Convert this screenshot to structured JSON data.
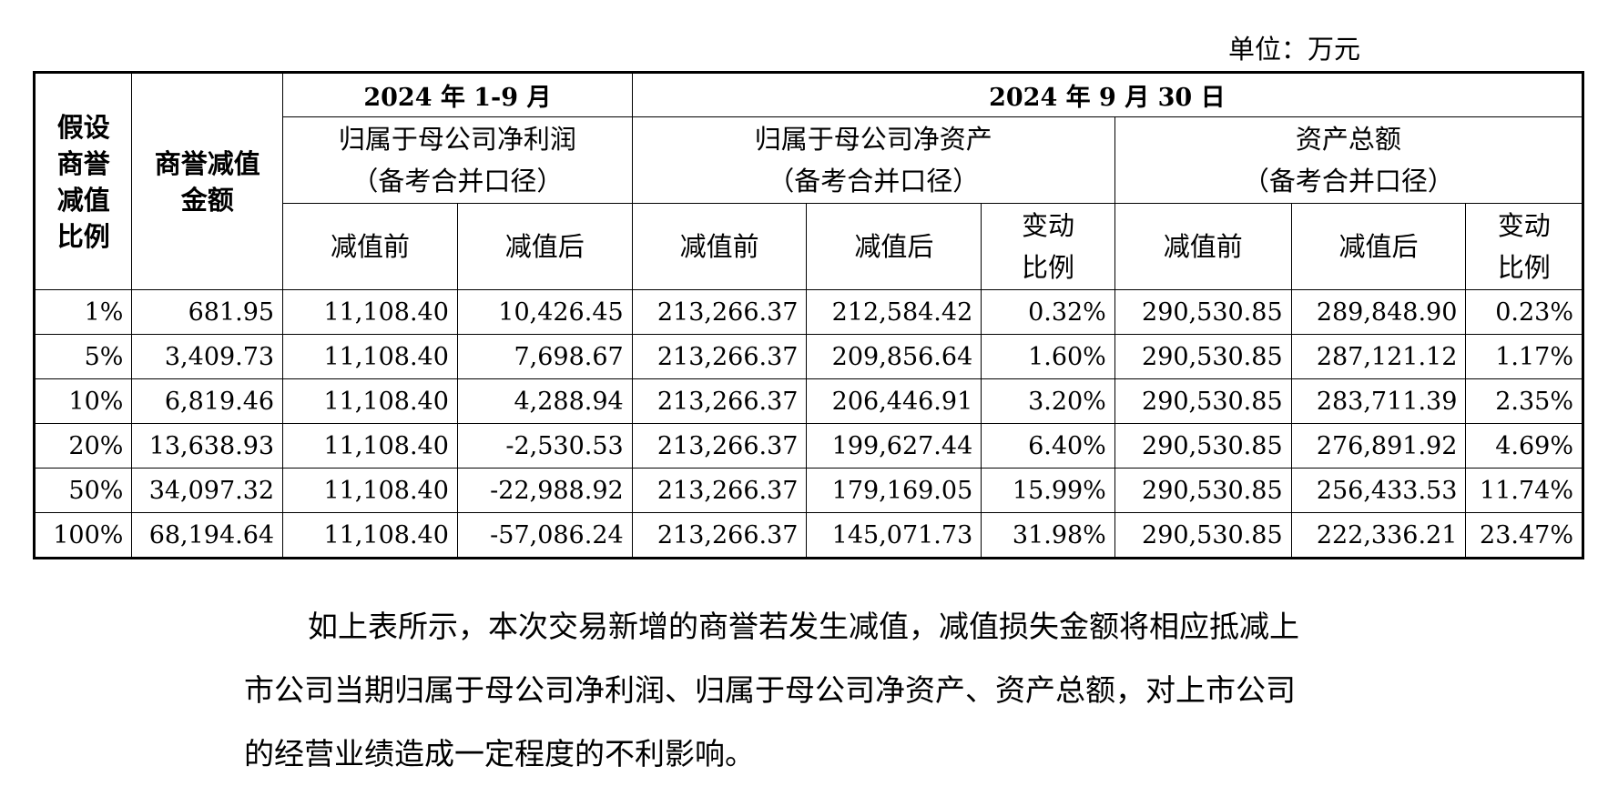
{
  "unit_label": "单位：万元",
  "table": {
    "col_ratio_lines": [
      "假设",
      "商誉",
      "减值",
      "比例"
    ],
    "col_amount_lines": [
      "商誉减值",
      "金额"
    ],
    "period1": "2024 年 1-9 月",
    "period2": "2024 年 9 月 30 日",
    "group_profit_lines": [
      "归属于母公司净利润",
      "（备考合并口径）"
    ],
    "group_equity_lines": [
      "归属于母公司净资产",
      "（备考合并口径）"
    ],
    "group_assets_lines": [
      "资产总额",
      "（备考合并口径）"
    ],
    "sub_before": "减值前",
    "sub_after": "减值后",
    "sub_change_lines": [
      "变动",
      "比例"
    ],
    "rows": [
      [
        "1%",
        "681.95",
        "11,108.40",
        "10,426.45",
        "213,266.37",
        "212,584.42",
        "0.32%",
        "290,530.85",
        "289,848.90",
        "0.23%"
      ],
      [
        "5%",
        "3,409.73",
        "11,108.40",
        "7,698.67",
        "213,266.37",
        "209,856.64",
        "1.60%",
        "290,530.85",
        "287,121.12",
        "1.17%"
      ],
      [
        "10%",
        "6,819.46",
        "11,108.40",
        "4,288.94",
        "213,266.37",
        "206,446.91",
        "3.20%",
        "290,530.85",
        "283,711.39",
        "2.35%"
      ],
      [
        "20%",
        "13,638.93",
        "11,108.40",
        "-2,530.53",
        "213,266.37",
        "199,627.44",
        "6.40%",
        "290,530.85",
        "276,891.92",
        "4.69%"
      ],
      [
        "50%",
        "34,097.32",
        "11,108.40",
        "-22,988.92",
        "213,266.37",
        "179,169.05",
        "15.99%",
        "290,530.85",
        "256,433.53",
        "11.74%"
      ],
      [
        "100%",
        "68,194.64",
        "11,108.40",
        "-57,086.24",
        "213,266.37",
        "145,071.73",
        "31.98%",
        "290,530.85",
        "222,336.21",
        "23.47%"
      ]
    ]
  },
  "paragraph_lines": [
    "如上表所示，本次交易新增的商誉若发生减值，减值损失金额将相应抵减上",
    "市公司当期归属于母公司净利润、归属于母公司净资产、资产总额，对上市公司",
    "的经营业绩造成一定程度的不利影响。"
  ]
}
